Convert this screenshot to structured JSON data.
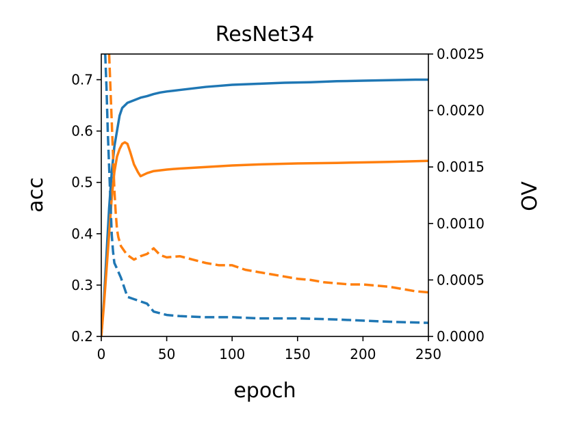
{
  "chart_data": {
    "type": "line",
    "title": "ResNet34",
    "xlabel": "epoch",
    "ylabel": "acc",
    "ylabel_right": "OV",
    "xlim": [
      0,
      250
    ],
    "ylim": [
      0.2,
      0.75
    ],
    "ylim_right": [
      0.0,
      0.0025
    ],
    "x_ticks": [
      "0",
      "50",
      "100",
      "150",
      "200",
      "250"
    ],
    "y_ticks": [
      "0.2",
      "0.3",
      "0.4",
      "0.5",
      "0.6",
      "0.7"
    ],
    "y_right_ticks": [
      "0.0000",
      "0.0005",
      "0.0010",
      "0.0015",
      "0.0020",
      "0.0025"
    ],
    "grid": false,
    "legend": null,
    "series": [
      {
        "axis": "left",
        "style": "solid",
        "color": "#1f77b4",
        "points": [
          [
            0,
            0.2
          ],
          [
            2,
            0.27
          ],
          [
            4,
            0.36
          ],
          [
            6,
            0.45
          ],
          [
            8,
            0.52
          ],
          [
            10,
            0.57
          ],
          [
            12,
            0.6
          ],
          [
            14,
            0.63
          ],
          [
            16,
            0.645
          ],
          [
            18,
            0.65
          ],
          [
            20,
            0.655
          ],
          [
            25,
            0.66
          ],
          [
            30,
            0.665
          ],
          [
            35,
            0.668
          ],
          [
            40,
            0.672
          ],
          [
            45,
            0.675
          ],
          [
            50,
            0.677
          ],
          [
            60,
            0.68
          ],
          [
            70,
            0.683
          ],
          [
            80,
            0.686
          ],
          [
            90,
            0.688
          ],
          [
            100,
            0.69
          ],
          [
            120,
            0.692
          ],
          [
            140,
            0.694
          ],
          [
            160,
            0.695
          ],
          [
            180,
            0.697
          ],
          [
            200,
            0.698
          ],
          [
            220,
            0.699
          ],
          [
            240,
            0.7
          ],
          [
            250,
            0.7
          ]
        ]
      },
      {
        "axis": "left",
        "style": "solid",
        "color": "#ff7f0e",
        "points": [
          [
            0,
            0.2
          ],
          [
            2,
            0.26
          ],
          [
            4,
            0.33
          ],
          [
            6,
            0.4
          ],
          [
            8,
            0.47
          ],
          [
            10,
            0.52
          ],
          [
            12,
            0.55
          ],
          [
            14,
            0.565
          ],
          [
            16,
            0.575
          ],
          [
            18,
            0.578
          ],
          [
            20,
            0.575
          ],
          [
            22,
            0.56
          ],
          [
            25,
            0.535
          ],
          [
            28,
            0.52
          ],
          [
            30,
            0.512
          ],
          [
            35,
            0.518
          ],
          [
            40,
            0.522
          ],
          [
            50,
            0.525
          ],
          [
            60,
            0.527
          ],
          [
            80,
            0.53
          ],
          [
            100,
            0.533
          ],
          [
            120,
            0.535
          ],
          [
            150,
            0.537
          ],
          [
            180,
            0.538
          ],
          [
            200,
            0.539
          ],
          [
            220,
            0.54
          ],
          [
            250,
            0.542
          ]
        ]
      },
      {
        "axis": "right",
        "style": "dashed",
        "color": "#1f77b4",
        "points": [
          [
            3,
            0.0025
          ],
          [
            4,
            0.0022
          ],
          [
            5,
            0.0018
          ],
          [
            6,
            0.0015
          ],
          [
            7,
            0.0012
          ],
          [
            8,
            0.0009
          ],
          [
            9,
            0.00075
          ],
          [
            10,
            0.00065
          ],
          [
            12,
            0.0006
          ],
          [
            15,
            0.00052
          ],
          [
            20,
            0.00035
          ],
          [
            25,
            0.00033
          ],
          [
            30,
            0.00031
          ],
          [
            35,
            0.00029
          ],
          [
            40,
            0.00022
          ],
          [
            50,
            0.00019
          ],
          [
            60,
            0.00018
          ],
          [
            80,
            0.00017
          ],
          [
            100,
            0.00017
          ],
          [
            120,
            0.00016
          ],
          [
            150,
            0.00016
          ],
          [
            180,
            0.00015
          ],
          [
            200,
            0.00014
          ],
          [
            220,
            0.00013
          ],
          [
            250,
            0.00012
          ]
        ]
      },
      {
        "axis": "right",
        "style": "dashed",
        "color": "#ff7f0e",
        "points": [
          [
            6,
            0.0025
          ],
          [
            7,
            0.0022
          ],
          [
            8,
            0.0019
          ],
          [
            9,
            0.0016
          ],
          [
            10,
            0.0013
          ],
          [
            11,
            0.0011
          ],
          [
            12,
            0.00095
          ],
          [
            13,
            0.00088
          ],
          [
            15,
            0.0008
          ],
          [
            18,
            0.00075
          ],
          [
            20,
            0.00072
          ],
          [
            25,
            0.00068
          ],
          [
            30,
            0.00071
          ],
          [
            35,
            0.00073
          ],
          [
            40,
            0.00078
          ],
          [
            45,
            0.00072
          ],
          [
            50,
            0.0007
          ],
          [
            60,
            0.00071
          ],
          [
            70,
            0.00068
          ],
          [
            80,
            0.00065
          ],
          [
            90,
            0.00063
          ],
          [
            100,
            0.00063
          ],
          [
            110,
            0.00059
          ],
          [
            120,
            0.00057
          ],
          [
            130,
            0.00055
          ],
          [
            140,
            0.00053
          ],
          [
            150,
            0.00051
          ],
          [
            160,
            0.0005
          ],
          [
            170,
            0.00048
          ],
          [
            180,
            0.00047
          ],
          [
            190,
            0.00046
          ],
          [
            200,
            0.00046
          ],
          [
            210,
            0.00045
          ],
          [
            220,
            0.00044
          ],
          [
            230,
            0.00042
          ],
          [
            240,
            0.0004
          ],
          [
            250,
            0.00039
          ]
        ]
      }
    ]
  }
}
